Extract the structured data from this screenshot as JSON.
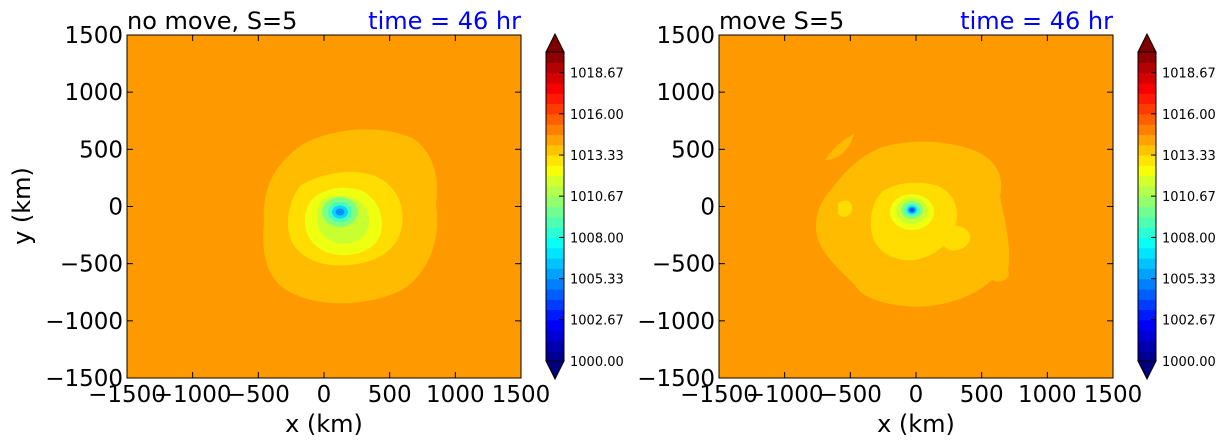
{
  "chart_data": [
    {
      "type": "heatmap",
      "title_left": "no move, S=5",
      "title_right": "time = 46 hr",
      "xlabel": "x (km)",
      "ylabel": "y (km)",
      "xlim": [
        -1500,
        1500
      ],
      "ylim": [
        -1500,
        1500
      ],
      "x_ticks": [
        -1500,
        -1000,
        -500,
        0,
        500,
        1000,
        1500
      ],
      "y_ticks": [
        -1500,
        -1000,
        -500,
        0,
        500,
        1000,
        1500
      ],
      "x_tick_labels": [
        "−1500",
        "−1000",
        "−500",
        "0",
        "500",
        "1000",
        "1500"
      ],
      "y_tick_labels": [
        "−1500",
        "−1000",
        "−500",
        "0",
        "500",
        "1000",
        "1500"
      ],
      "background_level": 1016.0,
      "cyclone_center_km": [
        110,
        -40
      ],
      "colorbar": {
        "min": 1000.0,
        "max": 1020.0,
        "extend": "both",
        "tick_values": [
          1000.0,
          1002.67,
          1005.33,
          1008.0,
          1010.67,
          1013.33,
          1016.0,
          1018.67
        ],
        "tick_labels": [
          "1000.00",
          "1002.67",
          "1005.33",
          "1008.00",
          "1010.67",
          "1013.33",
          "1016.00",
          "1018.67"
        ]
      }
    },
    {
      "type": "heatmap",
      "title_left": "move S=5",
      "title_right": "time = 46 hr",
      "xlabel": "x (km)",
      "ylabel": "",
      "xlim": [
        -1500,
        1500
      ],
      "ylim": [
        -1500,
        1500
      ],
      "x_ticks": [
        -1500,
        -1000,
        -500,
        0,
        500,
        1000,
        1500
      ],
      "y_ticks": [
        -1500,
        -1000,
        -500,
        0,
        500,
        1000,
        1500
      ],
      "x_tick_labels": [
        "−1500",
        "−1000",
        "−500",
        "0",
        "500",
        "1000",
        "1500"
      ],
      "y_tick_labels": [
        "−1500",
        "−1000",
        "−500",
        "0",
        "500",
        "1000",
        "1500"
      ],
      "background_level": 1016.0,
      "cyclone_center_km": [
        -30,
        -30
      ],
      "colorbar": {
        "min": 1000.0,
        "max": 1020.0,
        "extend": "both",
        "tick_values": [
          1000.0,
          1002.67,
          1005.33,
          1008.0,
          1010.67,
          1013.33,
          1016.0,
          1018.67
        ],
        "tick_labels": [
          "1000.00",
          "1002.67",
          "1005.33",
          "1008.00",
          "1010.67",
          "1013.33",
          "1016.00",
          "1018.67"
        ]
      }
    }
  ],
  "colors": {
    "title_right": "#0000ff",
    "background_fill": "#ff9900",
    "level_1015": "#ffbb00",
    "level_1013": "#ffdd00",
    "level_1012": "#eeff10",
    "level_1011": "#c8ff30",
    "level_1009": "#80ff80",
    "level_1008": "#40ffc0",
    "level_1006": "#10d0ff",
    "level_1004": "#0090ff",
    "level_1002": "#0040ff",
    "level_1000": "#0000cc"
  }
}
